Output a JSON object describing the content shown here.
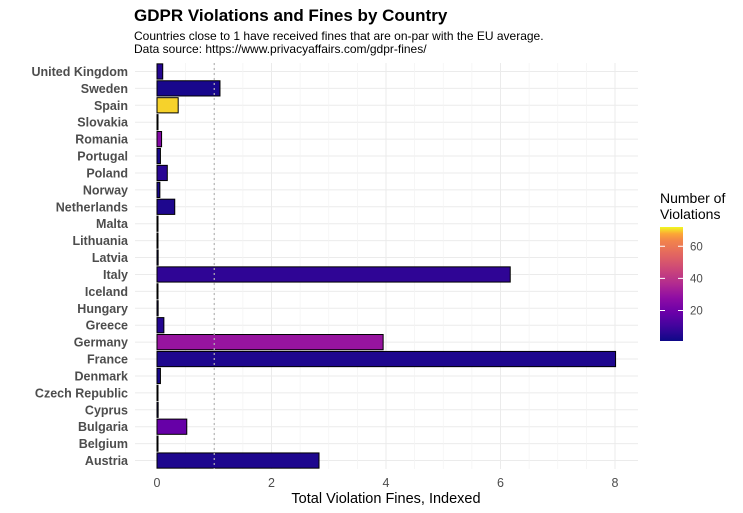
{
  "chart_data": {
    "type": "bar",
    "orientation": "horizontal",
    "title": "GDPR Violations and Fines by Country",
    "subtitle": [
      "Countries close to 1 have received fines that are on-par with the EU average.",
      "Data source: https://www.privacyaffairs.com/gdpr-fines/"
    ],
    "xlabel": "Total Violation Fines, Indexed",
    "ylabel": "",
    "xlim": [
      -0.3,
      8.4
    ],
    "xticks": [
      0,
      2,
      4,
      6,
      8
    ],
    "reference_line": 1,
    "grid": true,
    "categories": [
      "United Kingdom",
      "Sweden",
      "Spain",
      "Slovakia",
      "Romania",
      "Portugal",
      "Poland",
      "Norway",
      "Netherlands",
      "Malta",
      "Lithuania",
      "Latvia",
      "Italy",
      "Iceland",
      "Hungary",
      "Greece",
      "Germany",
      "France",
      "Denmark",
      "Czech Republic",
      "Cyprus",
      "Bulgaria",
      "Belgium",
      "Austria"
    ],
    "values": [
      0.1,
      1.1,
      0.37,
      0.01,
      0.08,
      0.06,
      0.18,
      0.05,
      0.31,
      0.005,
      0.01,
      0.02,
      6.17,
      0.005,
      0.02,
      0.12,
      3.95,
      8.01,
      0.06,
      0.01,
      0.02,
      0.52,
      0.01,
      2.83
    ],
    "violations": [
      5,
      3,
      70,
      2,
      25,
      3,
      6,
      3,
      4,
      1,
      1,
      2,
      7,
      1,
      4,
      5,
      30,
      4,
      3,
      1,
      1,
      18,
      1,
      4
    ],
    "legend": {
      "title": [
        "Number of",
        "Violations"
      ],
      "placement": "right",
      "range": [
        1,
        72
      ],
      "ticks": [
        20,
        40,
        60
      ]
    }
  }
}
